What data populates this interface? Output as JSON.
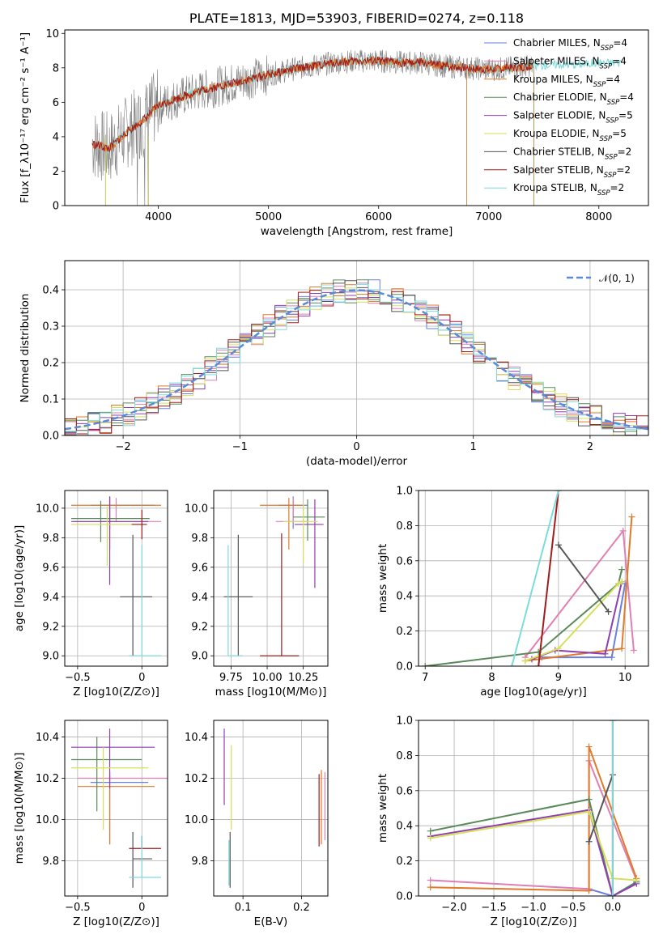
{
  "colors": {
    "Chabrier MILES": "#6a7fe0",
    "Salpeter MILES": "#e07fb3",
    "Kroupa MILES": "#e07a2a",
    "Chabrier ELODIE": "#5a8a5a",
    "Salpeter ELODIE": "#8e3fb0",
    "Kroupa ELODIE": "#d4e05a",
    "Chabrier STELIB": "#555555",
    "Salpeter STELIB": "#a01c1c",
    "Kroupa STELIB": "#7ddbdb",
    "data_gray": "#808080",
    "normal_curve": "#5b8ad8"
  },
  "chart_data": [
    {
      "id": "spectrum",
      "type": "line",
      "title": "PLATE=1813, MJD=53903, FIBERID=0274, z=0.118",
      "xlabel": "wavelength [Angstrom, rest frame]",
      "ylabel": "Flux [f_λ10⁻¹⁷ erg cm⁻² s⁻¹ A⁻¹]",
      "xlim": [
        3150,
        8450
      ],
      "ylim": [
        0,
        10.2
      ],
      "xticks": [
        4000,
        5000,
        6000,
        7000,
        8000
      ],
      "yticks": [
        0,
        2,
        4,
        6,
        8,
        10
      ],
      "legend_position": "top-right",
      "legend": [
        {
          "name": "Chabrier MILES",
          "nssp": "4"
        },
        {
          "name": "Salpeter MILES",
          "nssp": "4"
        },
        {
          "name": "Kroupa MILES",
          "nssp": "4"
        },
        {
          "name": "Chabrier ELODIE",
          "nssp": "4"
        },
        {
          "name": "Salpeter ELODIE",
          "nssp": "5"
        },
        {
          "name": "Kroupa ELODIE",
          "nssp": "5"
        },
        {
          "name": "Chabrier STELIB",
          "nssp": "2"
        },
        {
          "name": "Salpeter STELIB",
          "nssp": "2"
        },
        {
          "name": "Kroupa STELIB",
          "nssp": "2"
        }
      ],
      "continuum": {
        "x": [
          3400,
          3550,
          3700,
          3850,
          4000,
          4200,
          4400,
          4600,
          4800,
          5000,
          5200,
          5400,
          5600,
          5800,
          6000,
          6200,
          6400,
          6600,
          6800,
          7000,
          7200,
          7400,
          7600,
          7800,
          8000,
          8200
        ],
        "y": [
          3.6,
          3.3,
          4.2,
          4.9,
          5.8,
          6.3,
          6.7,
          7.0,
          7.3,
          7.6,
          7.9,
          8.1,
          8.3,
          8.4,
          8.4,
          8.3,
          8.3,
          8.1,
          8.0,
          7.9,
          8.0,
          8.1,
          8.2,
          8.2,
          8.3,
          8.3
        ]
      }
    },
    {
      "id": "residuals",
      "type": "histogram",
      "xlabel": "(data-model)/error",
      "ylabel": "Normed distribution",
      "xlim": [
        -2.5,
        2.5
      ],
      "ylim": [
        0,
        0.48
      ],
      "xticks": [
        -2,
        -1,
        0,
        1,
        2
      ],
      "yticks": [
        0.0,
        0.1,
        0.2,
        0.3,
        0.4
      ],
      "legend": "𝒩(0, 1)",
      "legend_position": "top-right",
      "bins": 50,
      "grid": true
    },
    {
      "id": "age_vs_Z",
      "type": "errorbar",
      "xlabel": "Z [log10(Z/Z⊙)]",
      "ylabel": "age  [log10(age/yr)]",
      "xlim": [
        -0.6,
        0.2
      ],
      "ylim": [
        8.93,
        10.12
      ],
      "xticks": [
        -0.5,
        0.0
      ],
      "yticks": [
        9.0,
        9.2,
        9.4,
        9.6,
        9.8,
        10.0
      ],
      "points": [
        {
          "series": "Chabrier MILES",
          "x": -0.25,
          "y": 10.02,
          "xerr": [
            0.15,
            0.35
          ],
          "yerr": [
            0.16,
            0.06
          ]
        },
        {
          "series": "Salpeter MILES",
          "x": -0.2,
          "y": 9.91,
          "xerr": [
            0.33,
            0.35
          ],
          "yerr": [
            0.0,
            0.16
          ]
        },
        {
          "series": "Kroupa MILES",
          "x": -0.25,
          "y": 10.02,
          "xerr": [
            0.3,
            0.4
          ],
          "yerr": [
            0.3,
            0.05
          ]
        },
        {
          "series": "Chabrier ELODIE",
          "x": -0.32,
          "y": 9.93,
          "xerr": [
            0.23,
            0.38
          ],
          "yerr": [
            0.16,
            0.12
          ]
        },
        {
          "series": "Salpeter ELODIE",
          "x": -0.25,
          "y": 9.91,
          "xerr": [
            0.3,
            0.3
          ],
          "yerr": [
            0.43,
            0.17
          ]
        },
        {
          "series": "Kroupa ELODIE",
          "x": -0.27,
          "y": 9.89,
          "xerr": [
            0.28,
            0.3
          ],
          "yerr": [
            0.28,
            0.12
          ]
        },
        {
          "series": "Chabrier STELIB",
          "x": -0.07,
          "y": 9.4,
          "xerr": [
            0.1,
            0.15
          ],
          "yerr": [
            0.4,
            0.42
          ]
        },
        {
          "series": "Salpeter STELIB",
          "x": 0.0,
          "y": 9.89,
          "xerr": [
            0.08,
            0.04
          ],
          "yerr": [
            0.1,
            0.1
          ]
        },
        {
          "series": "Kroupa STELIB",
          "x": 0.0,
          "y": 9.0,
          "xerr": [
            0.1,
            0.15
          ],
          "yerr": [
            0.0,
            0.75
          ]
        }
      ]
    },
    {
      "id": "age_vs_mass",
      "type": "errorbar",
      "xlabel": "mass [log10(M/M⊙)]",
      "ylabel": "",
      "xlim": [
        9.63,
        10.42
      ],
      "ylim": [
        8.93,
        10.12
      ],
      "xticks": [
        9.75,
        10.0,
        10.25
      ],
      "xticklabels": [
        "9.75",
        "10.00",
        "10.25"
      ],
      "yticks": [
        9.0,
        9.2,
        9.4,
        9.6,
        9.8,
        10.0
      ],
      "points": [
        {
          "series": "Chabrier MILES",
          "x": 10.18,
          "y": 10.02,
          "xerr": [
            0.1,
            0.1
          ],
          "yerr": [
            0.16,
            0.06
          ]
        },
        {
          "series": "Salpeter MILES",
          "x": 10.18,
          "y": 9.91,
          "xerr": [
            0.12,
            0.1
          ],
          "yerr": [
            0.0,
            0.16
          ]
        },
        {
          "series": "Kroupa MILES",
          "x": 10.15,
          "y": 10.02,
          "xerr": [
            0.2,
            0.1
          ],
          "yerr": [
            0.3,
            0.05
          ]
        },
        {
          "series": "Chabrier ELODIE",
          "x": 10.28,
          "y": 9.94,
          "xerr": [
            0.1,
            0.12
          ],
          "yerr": [
            0.16,
            0.12
          ]
        },
        {
          "series": "Salpeter ELODIE",
          "x": 10.33,
          "y": 9.89,
          "xerr": [
            0.14,
            0.06
          ],
          "yerr": [
            0.43,
            0.17
          ]
        },
        {
          "series": "Kroupa ELODIE",
          "x": 10.25,
          "y": 9.91,
          "xerr": [
            0.14,
            0.1
          ],
          "yerr": [
            0.28,
            0.12
          ]
        },
        {
          "series": "Chabrier STELIB",
          "x": 9.8,
          "y": 9.4,
          "xerr": [
            0.1,
            0.1
          ],
          "yerr": [
            0.4,
            0.42
          ]
        },
        {
          "series": "Salpeter STELIB",
          "x": 10.1,
          "y": 9.0,
          "xerr": [
            0.15,
            0.12
          ],
          "yerr": [
            0.0,
            0.83
          ]
        },
        {
          "series": "Kroupa STELIB",
          "x": 9.73,
          "y": 9.0,
          "xerr": [
            0.0,
            0.1
          ],
          "yerr": [
            0.0,
            0.75
          ]
        }
      ]
    },
    {
      "id": "mw_vs_age",
      "type": "line",
      "xlabel": "age  [log10(age/yr)]",
      "ylabel": "mass weight",
      "xlim": [
        6.9,
        10.35
      ],
      "ylim": [
        0,
        1.0
      ],
      "xticks": [
        7,
        8,
        9,
        10
      ],
      "yticks": [
        0.0,
        0.2,
        0.4,
        0.6,
        0.8,
        1.0
      ],
      "series": [
        {
          "series": "Chabrier MILES",
          "x": [
            8.75,
            9.8,
            10.0
          ],
          "y": [
            0.05,
            0.05,
            0.47
          ]
        },
        {
          "series": "Salpeter MILES",
          "x": [
            8.5,
            9.97,
            10.13
          ],
          "y": [
            0.05,
            0.77,
            0.09
          ]
        },
        {
          "series": "Kroupa MILES",
          "x": [
            8.5,
            9.95,
            10.1
          ],
          "y": [
            0.03,
            0.1,
            0.85
          ]
        },
        {
          "series": "Chabrier ELODIE",
          "x": [
            7.0,
            8.7,
            9.9,
            9.95
          ],
          "y": [
            0.0,
            0.08,
            0.47,
            0.55
          ]
        },
        {
          "series": "Salpeter ELODIE",
          "x": [
            8.6,
            8.95,
            9.7,
            9.95
          ],
          "y": [
            0.04,
            0.09,
            0.07,
            0.48
          ]
        },
        {
          "series": "Kroupa ELODIE",
          "x": [
            8.5,
            9.0,
            9.9,
            9.95
          ],
          "y": [
            0.03,
            0.1,
            0.47,
            0.48
          ]
        },
        {
          "series": "Chabrier STELIB",
          "x": [
            9.0,
            9.75
          ],
          "y": [
            0.69,
            0.31
          ]
        },
        {
          "series": "Salpeter STELIB",
          "x": [
            8.7,
            9.0
          ],
          "y": [
            0.0,
            1.0
          ]
        },
        {
          "series": "Kroupa STELIB",
          "x": [
            8.3,
            9.0
          ],
          "y": [
            0.0,
            1.0
          ]
        }
      ]
    },
    {
      "id": "mass_vs_Z",
      "type": "errorbar",
      "xlabel": "Z [log10(Z/Z⊙)]",
      "ylabel": "mass [log10(M/M⊙)]",
      "xlim": [
        -0.6,
        0.2
      ],
      "ylim": [
        9.63,
        10.48
      ],
      "xticks": [
        -0.5,
        0.0
      ],
      "yticks": [
        9.8,
        10.0,
        10.2,
        10.4
      ],
      "points": [
        {
          "series": "Chabrier MILES",
          "x": -0.25,
          "y": 10.18,
          "xerr": [
            0.15,
            0.3
          ],
          "yerr": [
            0.3,
            0.05
          ]
        },
        {
          "series": "Salpeter MILES",
          "x": -0.2,
          "y": 10.2,
          "xerr": [
            0.3,
            0.4
          ],
          "yerr": [
            0.0,
            0.0
          ]
        },
        {
          "series": "Kroupa MILES",
          "x": -0.25,
          "y": 10.16,
          "xerr": [
            0.25,
            0.35
          ],
          "yerr": [
            0.28,
            0.05
          ]
        },
        {
          "series": "Chabrier ELODIE",
          "x": -0.35,
          "y": 10.29,
          "xerr": [
            0.2,
            0.35
          ],
          "yerr": [
            0.25,
            0.11
          ]
        },
        {
          "series": "Salpeter ELODIE",
          "x": -0.25,
          "y": 10.35,
          "xerr": [
            0.3,
            0.35
          ],
          "yerr": [
            0.2,
            0.09
          ]
        },
        {
          "series": "Kroupa ELODIE",
          "x": -0.3,
          "y": 10.25,
          "xerr": [
            0.25,
            0.35
          ],
          "yerr": [
            0.3,
            0.1
          ]
        },
        {
          "series": "Chabrier STELIB",
          "x": -0.07,
          "y": 9.81,
          "xerr": [
            0.0,
            0.15
          ],
          "yerr": [
            0.14,
            0.13
          ]
        },
        {
          "series": "Salpeter STELIB",
          "x": 0.0,
          "y": 9.86,
          "xerr": [
            0.1,
            0.15
          ],
          "yerr": [
            0.0,
            0.06
          ]
        },
        {
          "series": "Kroupa STELIB",
          "x": 0.0,
          "y": 9.72,
          "xerr": [
            0.1,
            0.15
          ],
          "yerr": [
            0.0,
            0.2
          ]
        }
      ]
    },
    {
      "id": "mass_vs_EBV",
      "type": "errorbar",
      "xlabel": "E(B-V)",
      "ylabel": "",
      "xlim": [
        0.05,
        0.245
      ],
      "ylim": [
        9.63,
        10.48
      ],
      "xticks": [
        0.1,
        0.2
      ],
      "yticks": [
        9.8,
        10.0,
        10.2,
        10.4
      ],
      "points": [
        {
          "series": "Salpeter ELODIE",
          "x": 0.068,
          "y": 10.25,
          "xerr": [
            0,
            0
          ],
          "yerr": [
            0.18,
            0.19
          ]
        },
        {
          "series": "Kroupa ELODIE",
          "x": 0.08,
          "y": 10.2,
          "xerr": [
            0,
            0
          ],
          "yerr": [
            0.25,
            0.16
          ]
        },
        {
          "series": "Chabrier STELIB",
          "x": 0.078,
          "y": 9.81,
          "xerr": [
            0,
            0
          ],
          "yerr": [
            0.14,
            0.13
          ]
        },
        {
          "series": "Kroupa STELIB",
          "x": 0.076,
          "y": 9.78,
          "xerr": [
            0,
            0
          ],
          "yerr": [
            0.1,
            0.12
          ]
        },
        {
          "series": "Salpeter STELIB",
          "x": 0.23,
          "y": 10.05,
          "xerr": [
            0,
            0
          ],
          "yerr": [
            0.18,
            0.17
          ]
        },
        {
          "series": "Kroupa MILES",
          "x": 0.234,
          "y": 10.06,
          "xerr": [
            0,
            0
          ],
          "yerr": [
            0.18,
            0.18
          ]
        },
        {
          "series": "Salpeter MILES",
          "x": 0.24,
          "y": 10.05,
          "xerr": [
            0,
            0
          ],
          "yerr": [
            0.15,
            0.18
          ]
        }
      ]
    },
    {
      "id": "mw_vs_Z",
      "type": "line",
      "xlabel": "Z [log10(Z/Z⊙)]",
      "ylabel": "mass weight",
      "xlim": [
        -2.45,
        0.45
      ],
      "ylim": [
        0,
        1.0
      ],
      "xticks": [
        -2.0,
        -1.5,
        -1.0,
        -0.5,
        0.0
      ],
      "xticklabels": [
        "−2.0",
        "−1.5",
        "−1.0",
        "−0.5",
        "0.0"
      ],
      "yticks": [
        0.0,
        0.2,
        0.4,
        0.6,
        0.8,
        1.0
      ],
      "series": [
        {
          "series": "Chabrier MILES",
          "x": [
            -0.3,
            0.0,
            0.3
          ],
          "y": [
            0.04,
            0.0,
            0.08
          ]
        },
        {
          "series": "Salpeter MILES",
          "x": [
            -2.3,
            -0.3,
            -0.3,
            0.3
          ],
          "y": [
            0.09,
            0.04,
            0.77,
            0.09
          ]
        },
        {
          "series": "Kroupa MILES",
          "x": [
            -2.3,
            -0.3,
            -0.3,
            0.3
          ],
          "y": [
            0.05,
            0.03,
            0.85,
            0.1
          ]
        },
        {
          "series": "Chabrier ELODIE",
          "x": [
            -2.3,
            -0.3,
            0.0,
            0.3
          ],
          "y": [
            0.37,
            0.55,
            0.0,
            0.08
          ]
        },
        {
          "series": "Salpeter ELODIE",
          "x": [
            -2.3,
            -0.3,
            0.0,
            0.3
          ],
          "y": [
            0.34,
            0.49,
            0.0,
            0.07
          ]
        },
        {
          "series": "Kroupa ELODIE",
          "x": [
            -2.3,
            -0.3,
            0.0,
            0.3
          ],
          "y": [
            0.33,
            0.48,
            0.1,
            0.09
          ]
        },
        {
          "series": "Chabrier STELIB",
          "x": [
            -0.3,
            0.0
          ],
          "y": [
            0.31,
            0.69
          ]
        },
        {
          "series": "Salpeter STELIB",
          "x": [
            0.0,
            0.0
          ],
          "y": [
            0.0,
            1.0
          ]
        },
        {
          "series": "Kroupa STELIB",
          "x": [
            0.0,
            0.0
          ],
          "y": [
            0.0,
            1.0
          ]
        }
      ]
    }
  ]
}
